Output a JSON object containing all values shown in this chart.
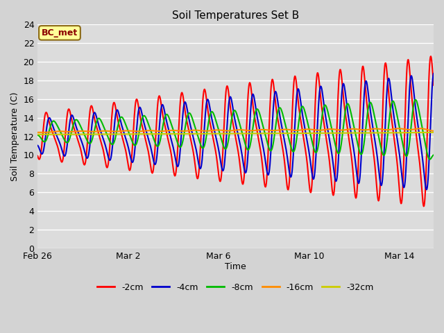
{
  "title": "Soil Temperatures Set B",
  "xlabel": "Time",
  "ylabel": "Soil Temperature (C)",
  "ylim": [
    0,
    24
  ],
  "yticks": [
    0,
    2,
    4,
    6,
    8,
    10,
    12,
    14,
    16,
    18,
    20,
    22,
    24
  ],
  "annotation_text": "BC_met",
  "annotation_color": "#8B0000",
  "annotation_bg": "#FFFF99",
  "annotation_edge": "#8B6914",
  "fig_bg": "#D3D3D3",
  "plot_bg": "#DCDCDC",
  "grid_color": "#FFFFFF",
  "series_colors": [
    "#FF0000",
    "#0000CC",
    "#00BB00",
    "#FF8C00",
    "#CCCC00"
  ],
  "series_labels": [
    "-2cm",
    "-4cm",
    "-8cm",
    "-16cm",
    "-32cm"
  ],
  "line_width": 1.5,
  "xtick_vals": [
    0,
    4,
    8,
    12,
    16
  ],
  "xtick_labels": [
    "Feb 26",
    "Mar 2",
    "Mar 6",
    "Mar 10",
    "Mar 14"
  ],
  "xlim": [
    0,
    17.5
  ],
  "title_fontsize": 11,
  "tick_fontsize": 9,
  "label_fontsize": 9,
  "legend_fontsize": 9
}
